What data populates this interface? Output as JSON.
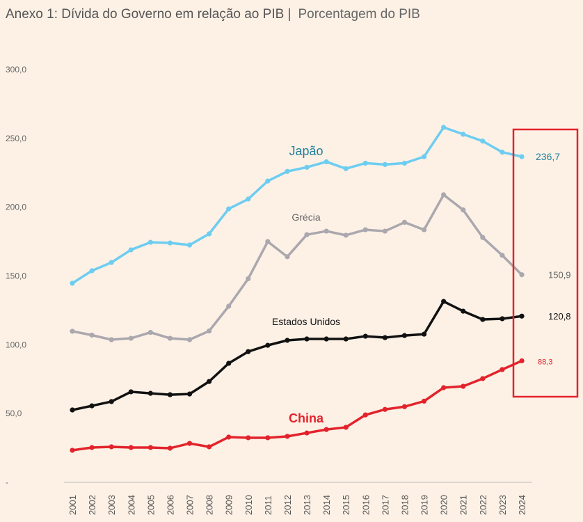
{
  "chart_data": {
    "type": "line",
    "title": "Anexo 1: Dívida do Governo em relação ao PIB |",
    "subtitle": "Porcentagem do PIB",
    "xlabel": "",
    "ylabel": "",
    "ylim": [
      0,
      300
    ],
    "y_ticks": [
      "-",
      "50,0",
      "100,0",
      "150,0",
      "200,0",
      "250,0",
      "300,0"
    ],
    "grid": false,
    "legend": "inline labels",
    "categories": [
      "2001",
      "2002",
      "2003",
      "2004",
      "2005",
      "2006",
      "2007",
      "2008",
      "2009",
      "2010",
      "2011",
      "2012",
      "2013",
      "2014",
      "2015",
      "2016",
      "2017",
      "2018",
      "2019",
      "2020",
      "2021",
      "2022",
      "2023",
      "2024"
    ],
    "series": [
      {
        "name": "Japão",
        "color": "#6dcdf0",
        "label_color": "#1f7f9a",
        "end_label": "236,7",
        "values": [
          144.7,
          153.8,
          159.8,
          169,
          174.5,
          174,
          172.5,
          180.6,
          198.8,
          205.9,
          219,
          226,
          229,
          233,
          228,
          232,
          231,
          232,
          236.7,
          258,
          253,
          248,
          240,
          236.7
        ]
      },
      {
        "name": "Grécia",
        "color": "#aaa7ad",
        "label_color": "#666666",
        "end_label": "150,9",
        "values": [
          109.8,
          107,
          103.7,
          104.7,
          109,
          104.7,
          103.7,
          110,
          128,
          148,
          175,
          164,
          180,
          182.6,
          179.6,
          183.6,
          182.6,
          189,
          183.6,
          209,
          198,
          178,
          165,
          150.9
        ]
      },
      {
        "name": "Estados Unidos",
        "color": "#111111",
        "label_color": "#111111",
        "end_label": "120,8",
        "values": [
          52.6,
          55.6,
          58.7,
          65.8,
          64.7,
          63.7,
          64.2,
          73.3,
          86.5,
          95,
          99.6,
          103.2,
          104.2,
          104.2,
          104.2,
          106.2,
          105.2,
          106.7,
          107.7,
          131.5,
          124.4,
          118.4,
          118.9,
          120.8
        ]
      },
      {
        "name": "China",
        "color": "#e3232b",
        "label_color": "#e3232b",
        "end_label": "88,3",
        "values": [
          23.3,
          25.3,
          25.8,
          25.3,
          25.3,
          24.8,
          28.3,
          25.8,
          32.9,
          32.4,
          32.4,
          33.4,
          35.9,
          38.4,
          40,
          49,
          53,
          55,
          59,
          68.8,
          69.8,
          75.4,
          82,
          88.3
        ]
      }
    ],
    "highlight_color": "#e3232b"
  }
}
